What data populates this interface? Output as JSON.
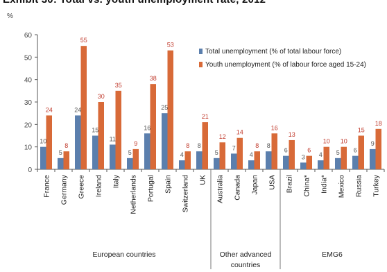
{
  "chart_data": {
    "type": "bar",
    "title": "Exhibit 30: Total vs. youth unemployment rate, 2012",
    "ylabel": "%",
    "ylim": [
      0,
      60
    ],
    "yticks": [
      0,
      10,
      20,
      30,
      40,
      50,
      60
    ],
    "grid": false,
    "legend_position": "top-right",
    "categories": [
      "France",
      "Germany",
      "Greece",
      "Ireland",
      "Italy",
      "Netherlands",
      "Portugal",
      "Spain",
      "Switzerland",
      "UK",
      "Australia",
      "Canada",
      "Japan",
      "USA",
      "Brazil",
      "China*",
      "India*",
      "Mexico",
      "Russia",
      "Turkey"
    ],
    "groups": [
      {
        "label": "European countries",
        "start": 0,
        "end": 9
      },
      {
        "label": "Other advanced countries",
        "start": 10,
        "end": 13
      },
      {
        "label": "EMG6",
        "start": 14,
        "end": 19
      }
    ],
    "series": [
      {
        "name": "Total unemployment (% of total labour force)",
        "color": "#5b7fad",
        "values": [
          10,
          5,
          24,
          15,
          11,
          5,
          16,
          25,
          4,
          8,
          5,
          7,
          4,
          8,
          6,
          3,
          4,
          5,
          6,
          9
        ]
      },
      {
        "name": "Youth unemployment (% of labour force aged 15-24)",
        "color": "#d86a38",
        "values": [
          24,
          8,
          55,
          30,
          35,
          9,
          38,
          53,
          8,
          21,
          12,
          14,
          8,
          16,
          13,
          6,
          10,
          10,
          15,
          18
        ]
      }
    ]
  }
}
